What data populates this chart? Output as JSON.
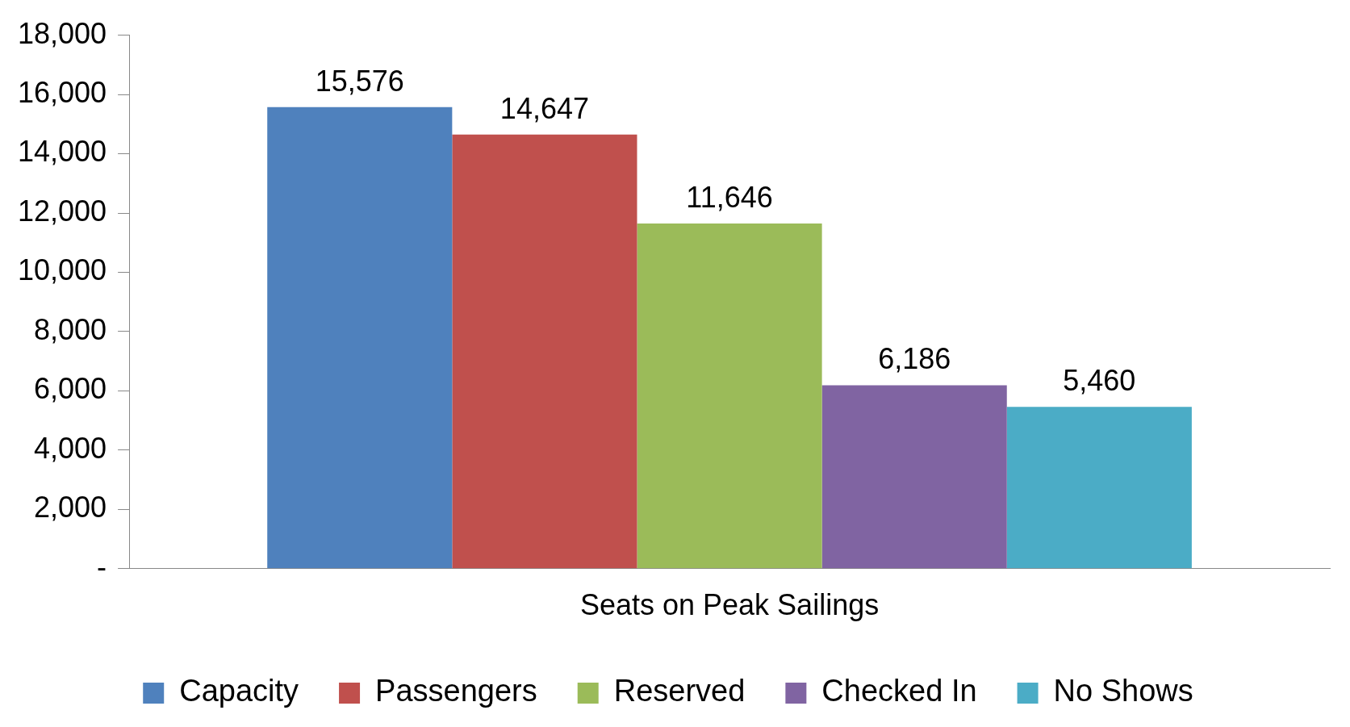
{
  "chart_data": {
    "type": "bar",
    "categories": [
      "Seats on Peak Sailings"
    ],
    "series": [
      {
        "name": "Capacity",
        "color": "#4f81bd",
        "values": [
          15576
        ],
        "value_labels": [
          "15,576"
        ]
      },
      {
        "name": "Passengers",
        "color": "#c0504d",
        "values": [
          14647
        ],
        "value_labels": [
          "14,647"
        ]
      },
      {
        "name": "Reserved",
        "color": "#9bbb59",
        "values": [
          11646
        ],
        "value_labels": [
          "11,646"
        ]
      },
      {
        "name": "Checked In",
        "color": "#8064a2",
        "values": [
          6186
        ],
        "value_labels": [
          "6,186"
        ]
      },
      {
        "name": "No Shows",
        "color": "#4bacc6",
        "values": [
          5460
        ],
        "value_labels": [
          "5,460"
        ]
      }
    ],
    "ylim": [
      0,
      18000
    ],
    "yticks": [
      {
        "value": 0,
        "label": "-"
      },
      {
        "value": 2000,
        "label": "2,000"
      },
      {
        "value": 4000,
        "label": "4,000"
      },
      {
        "value": 6000,
        "label": "6,000"
      },
      {
        "value": 8000,
        "label": "8,000"
      },
      {
        "value": 10000,
        "label": "10,000"
      },
      {
        "value": 12000,
        "label": "12,000"
      },
      {
        "value": 14000,
        "label": "14,000"
      },
      {
        "value": 16000,
        "label": "16,000"
      },
      {
        "value": 18000,
        "label": "18,000"
      }
    ],
    "grid": false,
    "legend": "bottom"
  }
}
